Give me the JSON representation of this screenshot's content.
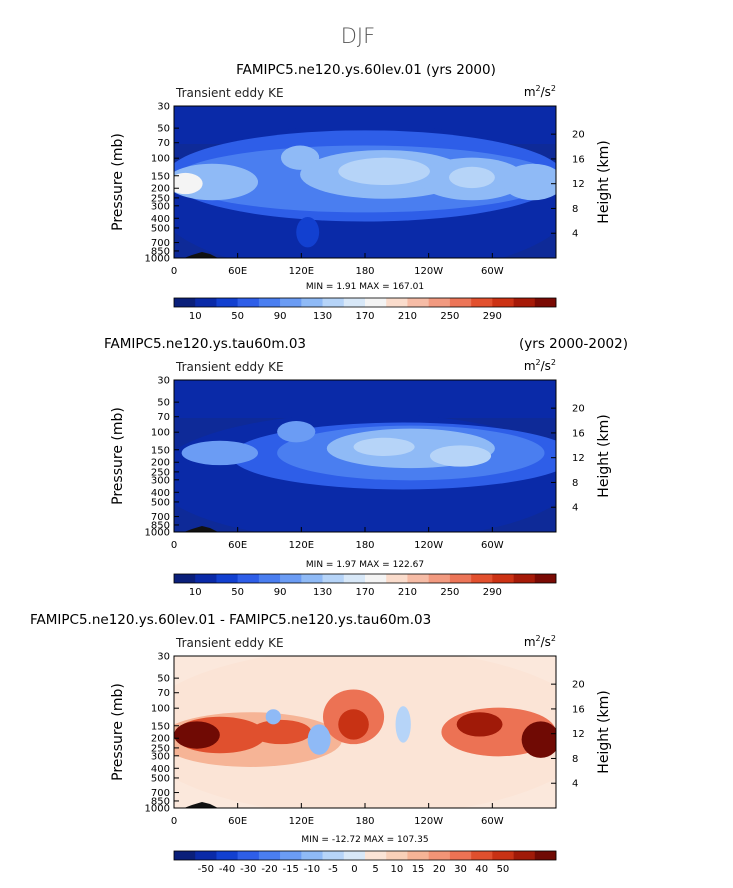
{
  "figure": {
    "season": "DJF"
  },
  "levels": {
    "abs_ticks": [
      "10",
      "50",
      "90",
      "130",
      "170",
      "210",
      "250",
      "290"
    ],
    "abs_colors": [
      "#0a1f7a",
      "#0a2aa8",
      "#1240d0",
      "#2e5ee8",
      "#4a7ef0",
      "#6b9cf4",
      "#8fbaf6",
      "#b6d4f8",
      "#d8e8f8",
      "#f4f4f4",
      "#fadccc",
      "#f6bca6",
      "#f29a80",
      "#ec7558",
      "#e2502e",
      "#cc3214",
      "#a61a08",
      "#7a0a04"
    ],
    "diff_ticks": [
      "-50",
      "-40",
      "-30",
      "-20",
      "-15",
      "-10",
      "-5",
      "0",
      "5",
      "10",
      "15",
      "20",
      "30",
      "40",
      "50"
    ],
    "diff_colors": [
      "#0a1f7a",
      "#0a2aa8",
      "#1240d0",
      "#2e5ee8",
      "#4a7ef0",
      "#6b9cf4",
      "#8fbaf6",
      "#b6d4f8",
      "#d8e8f8",
      "#fbe4d6",
      "#f9d0b8",
      "#f6b496",
      "#f29476",
      "#ec7254",
      "#e0502e",
      "#c83214",
      "#a01a08",
      "#700a04"
    ]
  },
  "axes": {
    "pressure_label": "Pressure (mb)",
    "height_label": "Height (km)",
    "units": "m²/s²",
    "units_base": "m",
    "units_exp1": "2",
    "units_mid": "/s",
    "units_exp2": "2",
    "pressure_ticks": [
      "30",
      "50",
      "70",
      "100",
      "150",
      "200",
      "250",
      "300",
      "400",
      "500",
      "700",
      "850",
      "1000"
    ],
    "height_ticks": [
      "20",
      "16",
      "12",
      "8",
      "4"
    ],
    "lon_ticks": [
      "0",
      "60E",
      "120E",
      "180",
      "120W",
      "60W"
    ]
  },
  "chart_data": [
    {
      "type": "heatmap",
      "title": "FAMIPC5.ne120.ys.60lev.01 (yrs 2000)",
      "subtitle": "Transient eddy KE",
      "stats": "MIN =    1.91   MAX = 167.01",
      "min": 1.91,
      "max": 167.01,
      "variant": "abs",
      "x_range": [
        0,
        360
      ],
      "y_range_mb": [
        1000,
        30
      ]
    },
    {
      "type": "heatmap",
      "title": "FAMIPC5.ne120.ys.tau60m.03",
      "title_right": "(yrs 2000-2002)",
      "subtitle": "Transient eddy KE",
      "stats": "MIN =    1.97   MAX = 122.67",
      "min": 1.97,
      "max": 122.67,
      "variant": "abs2",
      "x_range": [
        0,
        360
      ],
      "y_range_mb": [
        1000,
        30
      ]
    },
    {
      "type": "heatmap",
      "title": "FAMIPC5.ne120.ys.60lev.01 - FAMIPC5.ne120.ys.tau60m.03",
      "subtitle": "Transient eddy KE",
      "stats": "MIN = -12.72   MAX = 107.35",
      "min": -12.72,
      "max": 107.35,
      "variant": "diff",
      "x_range": [
        0,
        360
      ],
      "y_range_mb": [
        1000,
        30
      ]
    }
  ]
}
